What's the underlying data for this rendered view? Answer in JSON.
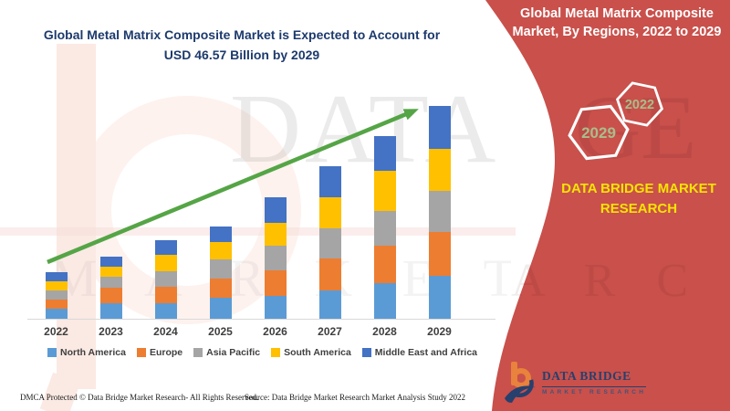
{
  "header": {
    "title_line1": "Global Metal Matrix Composite Market is Expected to Account for",
    "title_line2": "USD 46.57 Billion by 2029"
  },
  "banner": {
    "heading_line1": "Global Metal Matrix Composite",
    "heading_line2": "Market, By Regions, 2022 to 2029",
    "hexagons": [
      "2029",
      "2022"
    ],
    "brand_line1": "DATA BRIDGE MARKET",
    "brand_line2": "RESEARCH",
    "colors": {
      "background": "#C9504B",
      "heading_text": "#FFFFFF",
      "brand_text": "#F6E303",
      "hexagon_outline": "#FFFFFF",
      "hexagon_text": "#A8BE8B"
    }
  },
  "brand_logo": {
    "title": "DATA BRIDGE",
    "subtitle": "MARKET RESEARCH"
  },
  "watermarks": {
    "row1": "DATA B",
    "row2": "M A R K E T  R E S E",
    "banner_row1": "GE",
    "banner_row2": "A R C H"
  },
  "footer": {
    "left": "DMCA Protected © Data Bridge Market Research- All Rights Reserved.",
    "source": "Source: Data Bridge Market Research Market Analysis Study 2022"
  },
  "chart_data": {
    "type": "bar",
    "stacked": true,
    "title": "Global Metal Matrix Composite Market, By Regions, 2022 to 2029",
    "unit": "USD Billion (estimated from bar heights; 2029 total labeled as 46.57)",
    "categories": [
      "2022",
      "2023",
      "2024",
      "2025",
      "2026",
      "2027",
      "2028",
      "2029"
    ],
    "series": [
      {
        "name": "North America",
        "color": "#5B9BD5",
        "values": [
          2.3,
          3.5,
          3.4,
          4.7,
          5.0,
          6.3,
          7.8,
          9.32
        ]
      },
      {
        "name": "Europe",
        "color": "#ED7D31",
        "values": [
          2.0,
          3.3,
          3.6,
          4.1,
          5.7,
          7.0,
          8.2,
          9.65
        ]
      },
      {
        "name": "Asia Pacific",
        "color": "#A5A5A5",
        "values": [
          2.0,
          2.5,
          3.5,
          4.2,
          5.3,
          6.5,
          7.7,
          8.98
        ]
      },
      {
        "name": "South America",
        "color": "#FFC000",
        "values": [
          1.9,
          2.2,
          3.5,
          3.8,
          5.1,
          6.9,
          8.7,
          9.32
        ]
      },
      {
        "name": "Middle East and Africa",
        "color": "#4472C4",
        "values": [
          2.0,
          2.1,
          3.2,
          3.5,
          5.5,
          6.7,
          7.7,
          9.3
        ]
      }
    ],
    "totals": [
      10.2,
      13.6,
      17.2,
      20.3,
      26.6,
      33.4,
      40.1,
      46.57
    ],
    "ylim": [
      0,
      50
    ],
    "grid": false,
    "y_axis_visible": false,
    "legend_position": "bottom",
    "trend_arrow": {
      "present": true,
      "color": "#55A546",
      "direction": "up-right"
    }
  }
}
